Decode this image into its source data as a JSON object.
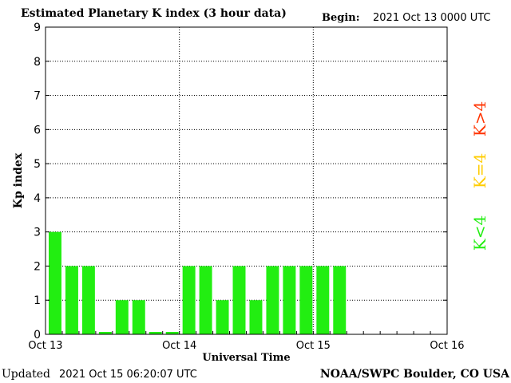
{
  "header": {
    "title": "Estimated Planetary K index (3 hour data)",
    "begin_label": "Begin:",
    "begin_value": "2021 Oct 13 0000 UTC"
  },
  "footer": {
    "updated_label": "Updated",
    "updated_value": "2021 Oct 15 06:20:07 UTC",
    "credit": "NOAA/SWPC Boulder, CO USA"
  },
  "legend": {
    "k_gt4": {
      "text": "K>4",
      "color": "#ff3300"
    },
    "k_eq4": {
      "text": "K=4",
      "color": "#ffcc00"
    },
    "k_lt4": {
      "text": "K<4",
      "color": "#22ee11"
    }
  },
  "chart_data": {
    "type": "bar",
    "ylabel": "Kp index",
    "xlabel": "Universal Time",
    "ylim": [
      0,
      9
    ],
    "y_ticks": [
      "0",
      "1",
      "2",
      "3",
      "4",
      "5",
      "6",
      "7",
      "8",
      "9"
    ],
    "x_ticks": [
      "Oct 13",
      "Oct 14",
      "Oct 15",
      "Oct 16"
    ],
    "grid": true,
    "bar_color": "#22ee11",
    "values": [
      3,
      2,
      2,
      0,
      1,
      1,
      0,
      0,
      2,
      2,
      1,
      2,
      1,
      2,
      2,
      2,
      2,
      2
    ]
  }
}
